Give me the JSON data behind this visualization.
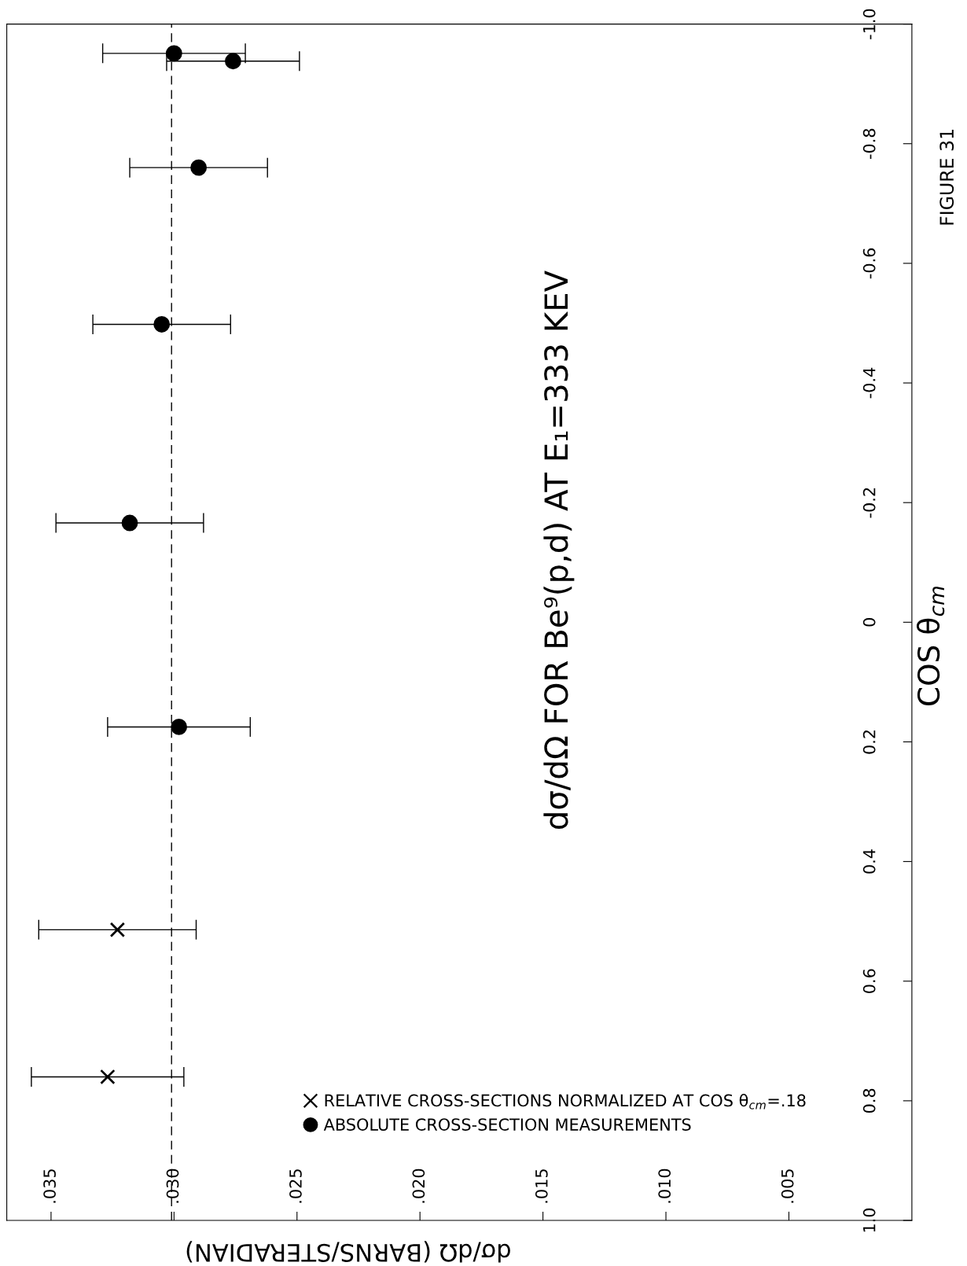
{
  "chart_data": {
    "type": "scatter",
    "title": "dσ/dΩ FOR Be⁹(p,d) AT E₁=333 KEV",
    "xlabel": "dσ/dΩ (BARNS/STERADIAN)",
    "ylabel": "COS θ$_{cm}$",
    "annotations": [
      "FIGURE 31"
    ],
    "xlim": [
      0.0368,
      0
    ],
    "xticks": [
      {
        "value": 0.005,
        "label": ".005"
      },
      {
        "value": 0.01,
        "label": ".010"
      },
      {
        "value": 0.015,
        "label": ".015"
      },
      {
        "value": 0.02,
        "label": ".020"
      },
      {
        "value": 0.025,
        "label": ".025"
      },
      {
        "value": 0.03,
        "label": ".030"
      },
      {
        "value": 0.035,
        "label": ".035"
      }
    ],
    "ylim": [
      1.0,
      -1.0
    ],
    "yticks": [
      {
        "value": 1.0,
        "label": "1.0"
      },
      0.8,
      0.6,
      0.4,
      0.2,
      0,
      -0.2,
      -0.4,
      -0.6,
      -0.8,
      {
        "value": -1.0,
        "label": "-1.0"
      }
    ],
    "series": [
      {
        "name": "RELATIVE CROSS-SECTIONS NORMALIZED AT COS θ$_{cm}$=.18",
        "color": "#000000",
        "marker": "cross",
        "x": [
          0.0327,
          0.0323
        ],
        "values": [
          0.76,
          0.514
        ],
        "xerrors": [
          0.0031,
          0.0032
        ]
      },
      {
        "name": "ABSOLUTE CROSS-SECTION MEASUREMENTS",
        "color": "#000000",
        "marker": "circle",
        "x": [
          0.0298,
          0.0318,
          0.0305,
          0.029,
          0.0276,
          0.03
        ],
        "values": [
          0.175,
          -0.166,
          -0.498,
          -0.76,
          -0.938,
          -0.951
        ],
        "xerrors": [
          0.0029,
          0.003,
          0.0028,
          0.0028,
          0.0027,
          0.0029
        ]
      }
    ],
    "ref_lines": [
      {
        "axis": "x",
        "value": 0.0301,
        "label": null,
        "line_style": "dashed",
        "color": "#000000"
      }
    ],
    "legend": "bottom right",
    "grid": false
  }
}
